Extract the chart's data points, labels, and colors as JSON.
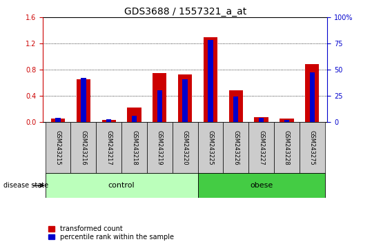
{
  "title": "GDS3688 / 1557321_a_at",
  "categories": [
    "GSM243215",
    "GSM243216",
    "GSM243217",
    "GSM243218",
    "GSM243219",
    "GSM243220",
    "GSM243225",
    "GSM243226",
    "GSM243227",
    "GSM243228",
    "GSM243275"
  ],
  "red_values": [
    0.05,
    0.65,
    0.03,
    0.22,
    0.75,
    0.73,
    1.29,
    0.48,
    0.07,
    0.05,
    0.88
  ],
  "blue_pct": [
    4.0,
    42.0,
    2.5,
    6.0,
    30.0,
    41.0,
    78.0,
    24.0,
    4.0,
    2.0,
    47.0
  ],
  "left_ylim": [
    0,
    1.6
  ],
  "right_ylim": [
    0,
    100
  ],
  "left_yticks": [
    0,
    0.4,
    0.8,
    1.2,
    1.6
  ],
  "right_yticks": [
    0,
    25,
    50,
    75,
    100
  ],
  "right_yticklabels": [
    "0",
    "25",
    "50",
    "75",
    "100%"
  ],
  "left_color": "#cc0000",
  "right_color": "#0000cc",
  "bar_width": 0.55,
  "blue_bar_width": 0.2,
  "control_color": "#bbffbb",
  "obese_color": "#44cc44",
  "label_bg_color": "#cccccc",
  "disease_state_label": "disease state",
  "control_label": "control",
  "obese_label": "obese",
  "legend_red_label": "transformed count",
  "legend_blue_label": "percentile rank within the sample",
  "title_fontsize": 10,
  "tick_fontsize": 7,
  "label_fontsize": 8
}
